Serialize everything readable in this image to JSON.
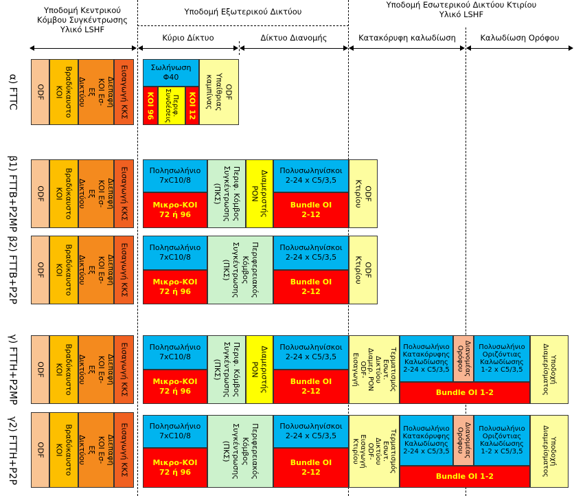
{
  "headers": {
    "central": "Υποδομή Κεντρικού\nΚόμβου Συγκέντρωσης\nΥλικό LSHF",
    "external": "Υποδομή Εξωτερικού Δικτύου",
    "internal": "Υποδομή Εσωτερικού Δικτύου Κτιρίου\nΥλικό LSHF",
    "main_net": "Κύριο Δίκτυο",
    "dist_net": "Δίκτυο Διανομής",
    "vertical": "Κατακόρυφη καλωδίωση",
    "floor": "Καλωδίωση Ορόφου"
  },
  "rows": {
    "a": "α) FTTC",
    "b1": "β1) FTTB+P2MP",
    "b2": "β2) FTTB+P2P",
    "g1": "γ) FTTH+P2MP",
    "g2": "γ2) FTTH+P2P"
  },
  "central": {
    "odf": "ODF",
    "bradyk": "Βραδύκαυστο\nΚΟΙ",
    "diepafi": "Διεπαφή\nΚΟΙ Εσ-Εξ\nΔικτύου",
    "eisagogi": "Εισαγωγή ΚΚΣ"
  },
  "fttc": {
    "solinosi": "Σωλήνωση\nΦ40",
    "koi96": "ΚΟΙ 96",
    "perif": "Περιφ.\nΣυνδέσεις",
    "koi12": "ΚΟΙ 12",
    "odf_cab": "ODF\nΥπαίθριας\nκαμπίνας"
  },
  "b": {
    "polysol": "Πολησωλήνιο\n7xC10/8",
    "mikro": "Μικρο-ΚΟΙ\n72 ή 96",
    "perif_short": "Περιφ. Κόμβος\nΣυγκέντρωσης\n(ΠΚΣ)",
    "perif_long": "Περιφερειακός\nΚόμβος\nΣυγκέντρωσης\n(ΠΚΣ)",
    "diamer": "Διαμεριστής\nPON",
    "polysolin": "Πολυσωληνίσκοι\n2-24 x C5/3,5",
    "bundle": "Bundle OI\n2-12",
    "odf_ktir": "ODF\nΚτιρίου"
  },
  "g": {
    "term_mp": "Τερματισμός\nΕσωτ. Δικτύου\nΔιαμερ. PON\nODF-Εισαγωγή",
    "term_p2p": "Τερματισμός\nΕσωτ. Δικτύου\nODF-Εισαγωγή\nΚτιρίου",
    "vert": "Πολυσωλήνιο\nΚατακόρυφης\nΚαλωδίωσης\n2-24 x C5/3,5",
    "dianom": "Διανομέας\nΟρόφου",
    "horiz": "Πολυσωλήνιο\nΟριζόντιας\nΚαλωδίωσης\n1-2 x C5/3,5",
    "ypodoxi": "Υποδοχή\nΔιαμερίσματος",
    "bundle12": "Bundle OI 1-2"
  }
}
